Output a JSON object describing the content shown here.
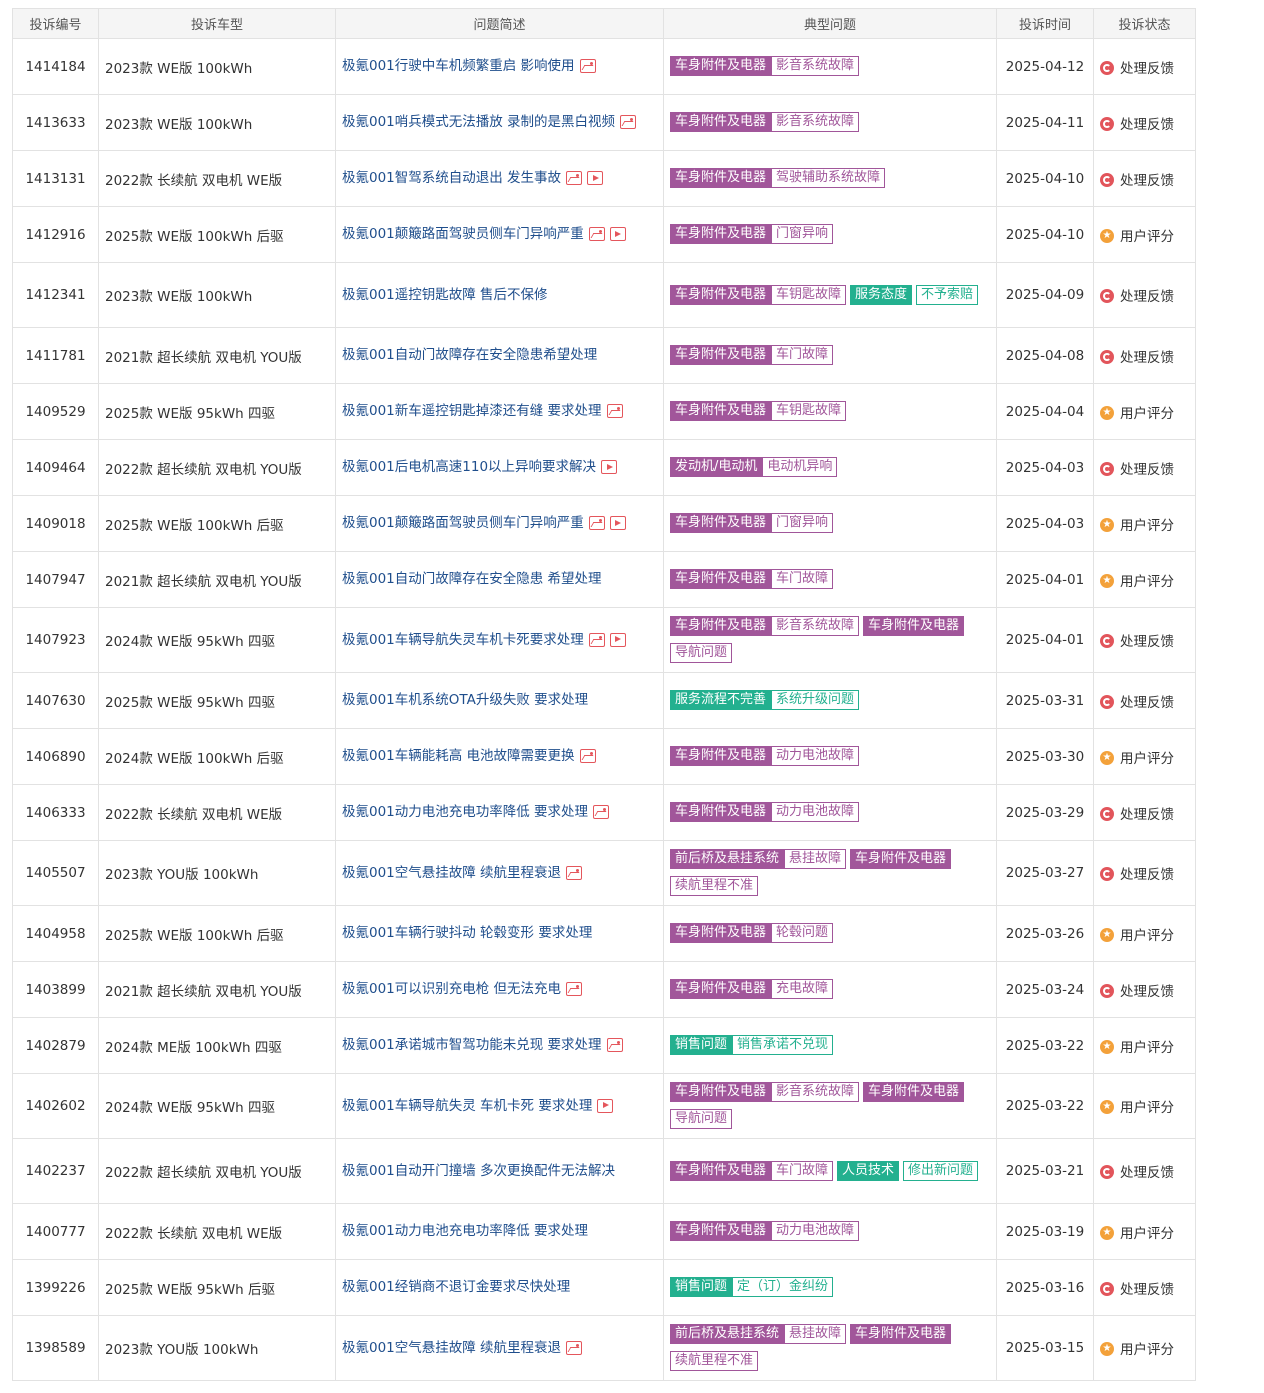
{
  "headers": {
    "id": "投诉编号",
    "model": "投诉车型",
    "desc": "问题简述",
    "typical": "典型问题",
    "time": "投诉时间",
    "status": "投诉状态"
  },
  "colors": {
    "purple_tag": "#a1569a",
    "green_tag": "#23b08f",
    "link_blue": "#1f4e8c",
    "status_red": "#e2555b",
    "status_orange": "#f3a13a",
    "media_icon_red": "#e4565c"
  },
  "status_icons": {
    "处理反馈": "processing-red-icon",
    "用户评分": "rating-orange-icon"
  },
  "rows": [
    {
      "id": "1414184",
      "model": "2023款 WE版 100kWh",
      "desc": "极氪001行驶中车机频繁重启 影响使用",
      "icons": [
        "img"
      ],
      "tags": [
        [
          {
            "t": "车身附件及电器",
            "s": "p-cat"
          },
          {
            "t": "影音系统故障",
            "s": "p-sub"
          }
        ]
      ],
      "time": "2025-04-12",
      "status": "处理反馈",
      "st": "red"
    },
    {
      "id": "1413633",
      "model": "2023款 WE版 100kWh",
      "desc": "极氪001哨兵模式无法播放 录制的是黑白视频",
      "icons": [
        "img"
      ],
      "tags": [
        [
          {
            "t": "车身附件及电器",
            "s": "p-cat"
          },
          {
            "t": "影音系统故障",
            "s": "p-sub"
          }
        ]
      ],
      "time": "2025-04-11",
      "status": "处理反馈",
      "st": "red"
    },
    {
      "id": "1413131",
      "model": "2022款 长续航 双电机 WE版",
      "desc": "极氪001智驾系统自动退出 发生事故",
      "icons": [
        "img",
        "vid"
      ],
      "tags": [
        [
          {
            "t": "车身附件及电器",
            "s": "p-cat"
          },
          {
            "t": "驾驶辅助系统故障",
            "s": "p-sub"
          }
        ]
      ],
      "time": "2025-04-10",
      "status": "处理反馈",
      "st": "red"
    },
    {
      "id": "1412916",
      "model": "2025款 WE版 100kWh 后驱",
      "desc": "极氪001颠簸路面驾驶员侧车门异响严重",
      "icons": [
        "img",
        "vid"
      ],
      "tags": [
        [
          {
            "t": "车身附件及电器",
            "s": "p-cat"
          },
          {
            "t": "门窗异响",
            "s": "p-sub"
          }
        ]
      ],
      "time": "2025-04-10",
      "status": "用户评分",
      "st": "orange"
    },
    {
      "id": "1412341",
      "model": "2023款 WE版 100kWh",
      "desc": "极氪001遥控钥匙故障 售后不保修",
      "icons": [],
      "tags": [
        [
          {
            "t": "车身附件及电器",
            "s": "p-cat"
          },
          {
            "t": "车钥匙故障",
            "s": "p-sub"
          }
        ],
        [
          {
            "t": "服务态度",
            "s": "g-cat"
          }
        ],
        [
          {
            "t": "不予索赔",
            "s": "g-sub"
          }
        ]
      ],
      "time": "2025-04-09",
      "status": "处理反馈",
      "st": "red",
      "tall": true
    },
    {
      "id": "1411781",
      "model": "2021款 超长续航 双电机 YOU版",
      "desc": "极氪001自动门故障存在安全隐患希望处理",
      "icons": [],
      "tags": [
        [
          {
            "t": "车身附件及电器",
            "s": "p-cat"
          },
          {
            "t": "车门故障",
            "s": "p-sub"
          }
        ]
      ],
      "time": "2025-04-08",
      "status": "处理反馈",
      "st": "red"
    },
    {
      "id": "1409529",
      "model": "2025款 WE版 95kWh 四驱",
      "desc": "极氪001新车遥控钥匙掉漆还有缝 要求处理",
      "icons": [
        "img"
      ],
      "tags": [
        [
          {
            "t": "车身附件及电器",
            "s": "p-cat"
          },
          {
            "t": "车钥匙故障",
            "s": "p-sub"
          }
        ]
      ],
      "time": "2025-04-04",
      "status": "用户评分",
      "st": "orange"
    },
    {
      "id": "1409464",
      "model": "2022款 超长续航 双电机 YOU版",
      "desc": "极氪001后电机高速110以上异响要求解决",
      "icons": [
        "vid"
      ],
      "tags": [
        [
          {
            "t": "发动机/电动机",
            "s": "p-cat"
          },
          {
            "t": "电动机异响",
            "s": "p-sub"
          }
        ]
      ],
      "time": "2025-04-03",
      "status": "处理反馈",
      "st": "red"
    },
    {
      "id": "1409018",
      "model": "2025款 WE版 100kWh 后驱",
      "desc": "极氪001颠簸路面驾驶员侧车门异响严重",
      "icons": [
        "img",
        "vid"
      ],
      "tags": [
        [
          {
            "t": "车身附件及电器",
            "s": "p-cat"
          },
          {
            "t": "门窗异响",
            "s": "p-sub"
          }
        ]
      ],
      "time": "2025-04-03",
      "status": "用户评分",
      "st": "orange"
    },
    {
      "id": "1407947",
      "model": "2021款 超长续航 双电机 YOU版",
      "desc": "极氪001自动门故障存在安全隐患 希望处理",
      "icons": [],
      "tags": [
        [
          {
            "t": "车身附件及电器",
            "s": "p-cat"
          },
          {
            "t": "车门故障",
            "s": "p-sub"
          }
        ]
      ],
      "time": "2025-04-01",
      "status": "用户评分",
      "st": "orange"
    },
    {
      "id": "1407923",
      "model": "2024款 WE版 95kWh 四驱",
      "desc": "极氪001车辆导航失灵车机卡死要求处理",
      "icons": [
        "img",
        "vid"
      ],
      "tags": [
        [
          {
            "t": "车身附件及电器",
            "s": "p-cat"
          },
          {
            "t": "影音系统故障",
            "s": "p-sub"
          }
        ],
        [
          {
            "t": "车身附件及电器",
            "s": "p-cat"
          }
        ],
        [
          {
            "t": "导航问题",
            "s": "p-sub"
          }
        ]
      ],
      "time": "2025-04-01",
      "status": "处理反馈",
      "st": "red",
      "tall": true
    },
    {
      "id": "1407630",
      "model": "2025款 WE版 95kWh 四驱",
      "desc": "极氪001车机系统OTA升级失败 要求处理",
      "icons": [],
      "tags": [
        [
          {
            "t": "服务流程不完善",
            "s": "g-cat"
          },
          {
            "t": "系统升级问题",
            "s": "g-sub"
          }
        ]
      ],
      "time": "2025-03-31",
      "status": "处理反馈",
      "st": "red"
    },
    {
      "id": "1406890",
      "model": "2024款 WE版 100kWh 后驱",
      "desc": "极氪001车辆能耗高 电池故障需要更换",
      "icons": [
        "img"
      ],
      "tags": [
        [
          {
            "t": "车身附件及电器",
            "s": "p-cat"
          },
          {
            "t": "动力电池故障",
            "s": "p-sub"
          }
        ]
      ],
      "time": "2025-03-30",
      "status": "用户评分",
      "st": "orange"
    },
    {
      "id": "1406333",
      "model": "2022款 长续航 双电机 WE版",
      "desc": "极氪001动力电池充电功率降低 要求处理",
      "icons": [
        "img"
      ],
      "tags": [
        [
          {
            "t": "车身附件及电器",
            "s": "p-cat"
          },
          {
            "t": "动力电池故障",
            "s": "p-sub"
          }
        ]
      ],
      "time": "2025-03-29",
      "status": "处理反馈",
      "st": "red"
    },
    {
      "id": "1405507",
      "model": "2023款 YOU版 100kWh",
      "desc": "极氪001空气悬挂故障 续航里程衰退",
      "icons": [
        "img"
      ],
      "tags": [
        [
          {
            "t": "前后桥及悬挂系统",
            "s": "p-cat"
          },
          {
            "t": "悬挂故障",
            "s": "p-sub"
          }
        ],
        [
          {
            "t": "车身附件及电器",
            "s": "p-cat"
          }
        ],
        [
          {
            "t": "续航里程不准",
            "s": "p-sub"
          }
        ]
      ],
      "time": "2025-03-27",
      "status": "处理反馈",
      "st": "red",
      "tall": true
    },
    {
      "id": "1404958",
      "model": "2025款 WE版 100kWh 后驱",
      "desc": "极氪001车辆行驶抖动 轮毂变形 要求处理",
      "icons": [],
      "tags": [
        [
          {
            "t": "车身附件及电器",
            "s": "p-cat"
          },
          {
            "t": "轮毂问题",
            "s": "p-sub"
          }
        ]
      ],
      "time": "2025-03-26",
      "status": "用户评分",
      "st": "orange"
    },
    {
      "id": "1403899",
      "model": "2021款 超长续航 双电机 YOU版",
      "desc": "极氪001可以识别充电枪 但无法充电",
      "icons": [
        "img"
      ],
      "tags": [
        [
          {
            "t": "车身附件及电器",
            "s": "p-cat"
          },
          {
            "t": "充电故障",
            "s": "p-sub"
          }
        ]
      ],
      "time": "2025-03-24",
      "status": "处理反馈",
      "st": "red"
    },
    {
      "id": "1402879",
      "model": "2024款 ME版 100kWh 四驱",
      "desc": "极氪001承诺城市智驾功能未兑现 要求处理",
      "icons": [
        "img"
      ],
      "tags": [
        [
          {
            "t": "销售问题",
            "s": "g-cat"
          },
          {
            "t": "销售承诺不兑现",
            "s": "g-sub"
          }
        ]
      ],
      "time": "2025-03-22",
      "status": "用户评分",
      "st": "orange"
    },
    {
      "id": "1402602",
      "model": "2024款 WE版 95kWh 四驱",
      "desc": "极氪001车辆导航失灵 车机卡死 要求处理",
      "icons": [
        "vid"
      ],
      "tags": [
        [
          {
            "t": "车身附件及电器",
            "s": "p-cat"
          },
          {
            "t": "影音系统故障",
            "s": "p-sub"
          }
        ],
        [
          {
            "t": "车身附件及电器",
            "s": "p-cat"
          }
        ],
        [
          {
            "t": "导航问题",
            "s": "p-sub"
          }
        ]
      ],
      "time": "2025-03-22",
      "status": "用户评分",
      "st": "orange",
      "tall": true
    },
    {
      "id": "1402237",
      "model": "2022款 超长续航 双电机 YOU版",
      "desc": "极氪001自动开门撞墙 多次更换配件无法解决",
      "icons": [],
      "tags": [
        [
          {
            "t": "车身附件及电器",
            "s": "p-cat"
          },
          {
            "t": "车门故障",
            "s": "p-sub"
          }
        ],
        [
          {
            "t": "人员技术",
            "s": "g-cat"
          }
        ],
        [
          {
            "t": "修出新问题",
            "s": "g-sub"
          }
        ]
      ],
      "time": "2025-03-21",
      "status": "处理反馈",
      "st": "red",
      "tall": true
    },
    {
      "id": "1400777",
      "model": "2022款 长续航 双电机 WE版",
      "desc": "极氪001动力电池充电功率降低 要求处理",
      "icons": [],
      "tags": [
        [
          {
            "t": "车身附件及电器",
            "s": "p-cat"
          },
          {
            "t": "动力电池故障",
            "s": "p-sub"
          }
        ]
      ],
      "time": "2025-03-19",
      "status": "用户评分",
      "st": "orange"
    },
    {
      "id": "1399226",
      "model": "2025款 WE版 95kWh 后驱",
      "desc": "极氪001经销商不退订金要求尽快处理",
      "icons": [],
      "tags": [
        [
          {
            "t": "销售问题",
            "s": "g-cat"
          },
          {
            "t": "定（订）金纠纷",
            "s": "g-sub"
          }
        ]
      ],
      "time": "2025-03-16",
      "status": "处理反馈",
      "st": "red"
    },
    {
      "id": "1398589",
      "model": "2023款 YOU版 100kWh",
      "desc": "极氪001空气悬挂故障 续航里程衰退",
      "icons": [
        "img"
      ],
      "tags": [
        [
          {
            "t": "前后桥及悬挂系统",
            "s": "p-cat"
          },
          {
            "t": "悬挂故障",
            "s": "p-sub"
          }
        ],
        [
          {
            "t": "车身附件及电器",
            "s": "p-cat"
          }
        ],
        [
          {
            "t": "续航里程不准",
            "s": "p-sub"
          }
        ]
      ],
      "time": "2025-03-15",
      "status": "用户评分",
      "st": "orange",
      "tall": true
    }
  ]
}
